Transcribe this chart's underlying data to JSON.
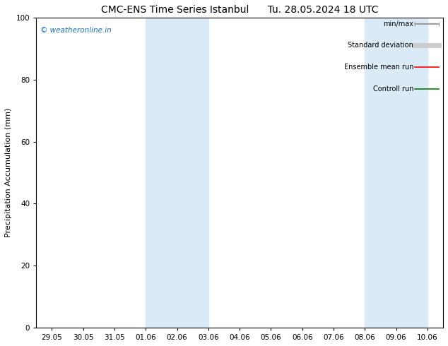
{
  "title_left": "CMC-ENS Time Series Istanbul",
  "title_right": "Tu. 28.05.2024 18 UTC",
  "ylabel": "Precipitation Accumulation (mm)",
  "ylim": [
    0,
    100
  ],
  "yticks": [
    0,
    20,
    40,
    60,
    80,
    100
  ],
  "x_tick_labels": [
    "29.05",
    "30.05",
    "31.05",
    "01.06",
    "02.06",
    "03.06",
    "04.06",
    "05.06",
    "06.06",
    "07.06",
    "08.06",
    "09.06",
    "10.06"
  ],
  "shaded_regions": [
    {
      "x_start": "01.06",
      "x_end": "03.06",
      "color": "#daeaf7"
    },
    {
      "x_start": "08.06",
      "x_end": "10.06",
      "color": "#daeaf7"
    }
  ],
  "watermark_text": "© weatheronline.in",
  "watermark_color": "#1a6fc4",
  "legend_entries": [
    {
      "label": "min/max",
      "color": "#999999",
      "lw": 1.2
    },
    {
      "label": "Standard deviation",
      "color": "#cccccc",
      "lw": 5
    },
    {
      "label": "Ensemble mean run",
      "color": "#ff0000",
      "lw": 1.2
    },
    {
      "label": "Controll run",
      "color": "#008000",
      "lw": 1.2
    }
  ],
  "bg_color": "#ffffff",
  "plot_bg_color": "#ffffff",
  "title_fontsize": 10,
  "axis_fontsize": 8,
  "tick_fontsize": 7.5,
  "watermark_fontsize": 7.5,
  "legend_fontsize": 7
}
